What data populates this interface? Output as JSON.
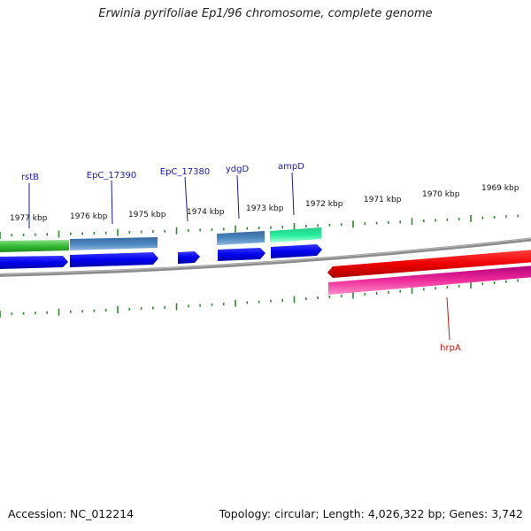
{
  "title": "Erwinia pyrifoliae Ep1/96 chromosome, complete genome",
  "footer": {
    "accession": "Accession: NC_012214",
    "topology": "Topology: circular; Length: 4,026,322 bp; Genes: 3,742"
  },
  "colors": {
    "tick": "#2e8b2e",
    "forward_label": "#1a1aaa",
    "reverse_label": "#cc1111",
    "backbone": "#8c8c8c"
  },
  "kbp_labels": [
    "1977 kbp",
    "1976 kbp",
    "1975 kbp",
    "1974 kbp",
    "1973 kbp",
    "1972 kbp",
    "1971 kbp",
    "1970 kbp",
    "1969 kbp"
  ],
  "genes": [
    {
      "label": "rstB",
      "strand": "forward"
    },
    {
      "label": "EpC_17390",
      "strand": "forward"
    },
    {
      "label": "EpC_17380",
      "strand": "forward"
    },
    {
      "label": "ydgD",
      "strand": "forward"
    },
    {
      "label": "ampD",
      "strand": "forward"
    },
    {
      "label": "hrpA",
      "strand": "reverse"
    }
  ]
}
